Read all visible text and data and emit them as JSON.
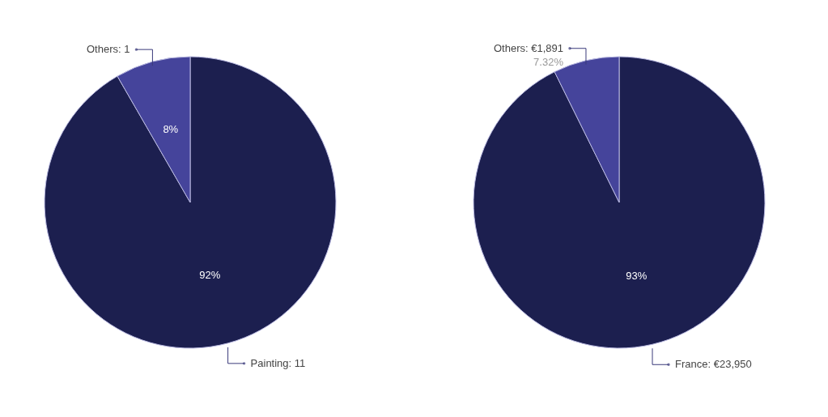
{
  "chart_data": [
    {
      "type": "pie",
      "categories": [
        "Painting",
        "Others"
      ],
      "values": [
        11,
        1
      ],
      "value_labels": [
        "11",
        "1"
      ],
      "colors": [
        "#1c1f4f",
        "#45449b"
      ],
      "annotations": [
        "92%",
        "8%"
      ]
    },
    {
      "type": "pie",
      "categories": [
        "France",
        "Others"
      ],
      "values": [
        23950,
        1891
      ],
      "value_labels": [
        "€23,950",
        "€1,891"
      ],
      "colors": [
        "#1c1f4f",
        "#45449b"
      ],
      "annotations": [
        "93%",
        "7.32%"
      ]
    }
  ]
}
